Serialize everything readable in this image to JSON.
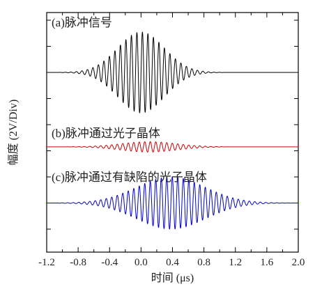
{
  "chart_data": {
    "type": "line",
    "title": "",
    "xlabel": "时间 (μs)",
    "ylabel": "幅度 (2V/Div)",
    "xlim": [
      -1.2,
      2.0
    ],
    "xticks": [
      "-1.2",
      "-0.8",
      "-0.4",
      "0.0",
      "0.4",
      "0.8",
      "1.2",
      "1.6",
      "2.0"
    ],
    "grid": false,
    "legend": "none",
    "series": [
      {
        "name": "(a)脉冲信号",
        "color": "#000000",
        "baseline_div": 0,
        "envelope": "gaussian",
        "center_us": 0.0,
        "envelope_width_us": 0.42,
        "extent_us": [
          -1.05,
          1.05
        ],
        "carrier_period_us": 0.07,
        "peak_amplitude_div": 1.55
      },
      {
        "name": "(b)脉冲通过光子晶体",
        "color": "#cc0000",
        "baseline_div": -2.85,
        "envelope": "gaussian",
        "center_us": 0.1,
        "envelope_width_us": 0.5,
        "extent_us": [
          -0.95,
          1.1
        ],
        "carrier_period_us": 0.07,
        "peak_amplitude_div": 0.2
      },
      {
        "name": "(c)脉冲通过有缺陷的光子晶体",
        "color": "#0000cc",
        "baseline_div": -5.0,
        "envelope": "gaussian",
        "center_us": 0.38,
        "envelope_width_us": 0.62,
        "extent_us": [
          -1.05,
          2.0
        ],
        "carrier_period_us": 0.07,
        "peak_amplitude_div": 1.0
      }
    ]
  }
}
